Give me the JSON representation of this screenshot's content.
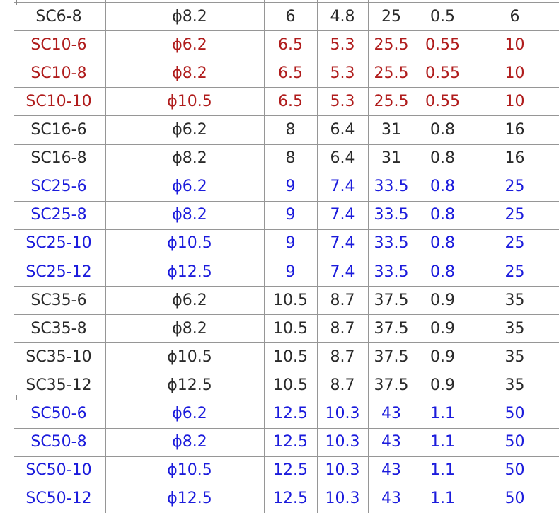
{
  "chart_data": {
    "type": "table",
    "rows": [
      {
        "color": "black",
        "cells": [
          "SC6-8",
          "ϕ8.2",
          "6",
          "4.8",
          "25",
          "0.5",
          "6"
        ]
      },
      {
        "color": "red",
        "cells": [
          "SC10-6",
          "ϕ6.2",
          "6.5",
          "5.3",
          "25.5",
          "0.55",
          "10"
        ]
      },
      {
        "color": "red",
        "cells": [
          "SC10-8",
          "ϕ8.2",
          "6.5",
          "5.3",
          "25.5",
          "0.55",
          "10"
        ]
      },
      {
        "color": "red",
        "cells": [
          "SC10-10",
          "ϕ10.5",
          "6.5",
          "5.3",
          "25.5",
          "0.55",
          "10"
        ]
      },
      {
        "color": "black",
        "cells": [
          "SC16-6",
          "ϕ6.2",
          "8",
          "6.4",
          "31",
          "0.8",
          "16"
        ]
      },
      {
        "color": "black",
        "cells": [
          "SC16-8",
          "ϕ8.2",
          "8",
          "6.4",
          "31",
          "0.8",
          "16"
        ]
      },
      {
        "color": "blue",
        "cells": [
          "SC25-6",
          "ϕ6.2",
          "9",
          "7.4",
          "33.5",
          "0.8",
          "25"
        ]
      },
      {
        "color": "blue",
        "cells": [
          "SC25-8",
          "ϕ8.2",
          "9",
          "7.4",
          "33.5",
          "0.8",
          "25"
        ]
      },
      {
        "color": "blue",
        "cells": [
          "SC25-10",
          "ϕ10.5",
          "9",
          "7.4",
          "33.5",
          "0.8",
          "25"
        ]
      },
      {
        "color": "blue",
        "cells": [
          "SC25-12",
          "ϕ12.5",
          "9",
          "7.4",
          "33.5",
          "0.8",
          "25"
        ]
      },
      {
        "color": "black",
        "cells": [
          "SC35-6",
          "ϕ6.2",
          "10.5",
          "8.7",
          "37.5",
          "0.9",
          "35"
        ]
      },
      {
        "color": "black",
        "cells": [
          "SC35-8",
          "ϕ8.2",
          "10.5",
          "8.7",
          "37.5",
          "0.9",
          "35"
        ]
      },
      {
        "color": "black",
        "cells": [
          "SC35-10",
          "ϕ10.5",
          "10.5",
          "8.7",
          "37.5",
          "0.9",
          "35"
        ]
      },
      {
        "color": "black",
        "cells": [
          "SC35-12",
          "ϕ12.5",
          "10.5",
          "8.7",
          "37.5",
          "0.9",
          "35"
        ]
      },
      {
        "color": "blue",
        "cells": [
          "SC50-6",
          "ϕ6.2",
          "12.5",
          "10.3",
          "43",
          "1.1",
          "50"
        ]
      },
      {
        "color": "blue",
        "cells": [
          "SC50-8",
          "ϕ8.2",
          "12.5",
          "10.3",
          "43",
          "1.1",
          "50"
        ]
      },
      {
        "color": "blue",
        "cells": [
          "SC50-10",
          "ϕ10.5",
          "12.5",
          "10.3",
          "43",
          "1.1",
          "50"
        ]
      },
      {
        "color": "blue",
        "cells": [
          "SC50-12",
          "ϕ12.5",
          "12.5",
          "10.3",
          "43",
          "1.1",
          "50"
        ]
      }
    ]
  },
  "colors": {
    "black": "#2a2a2a",
    "red": "#b01c1c",
    "blue": "#1b1bdc",
    "gridline": "#969696"
  }
}
